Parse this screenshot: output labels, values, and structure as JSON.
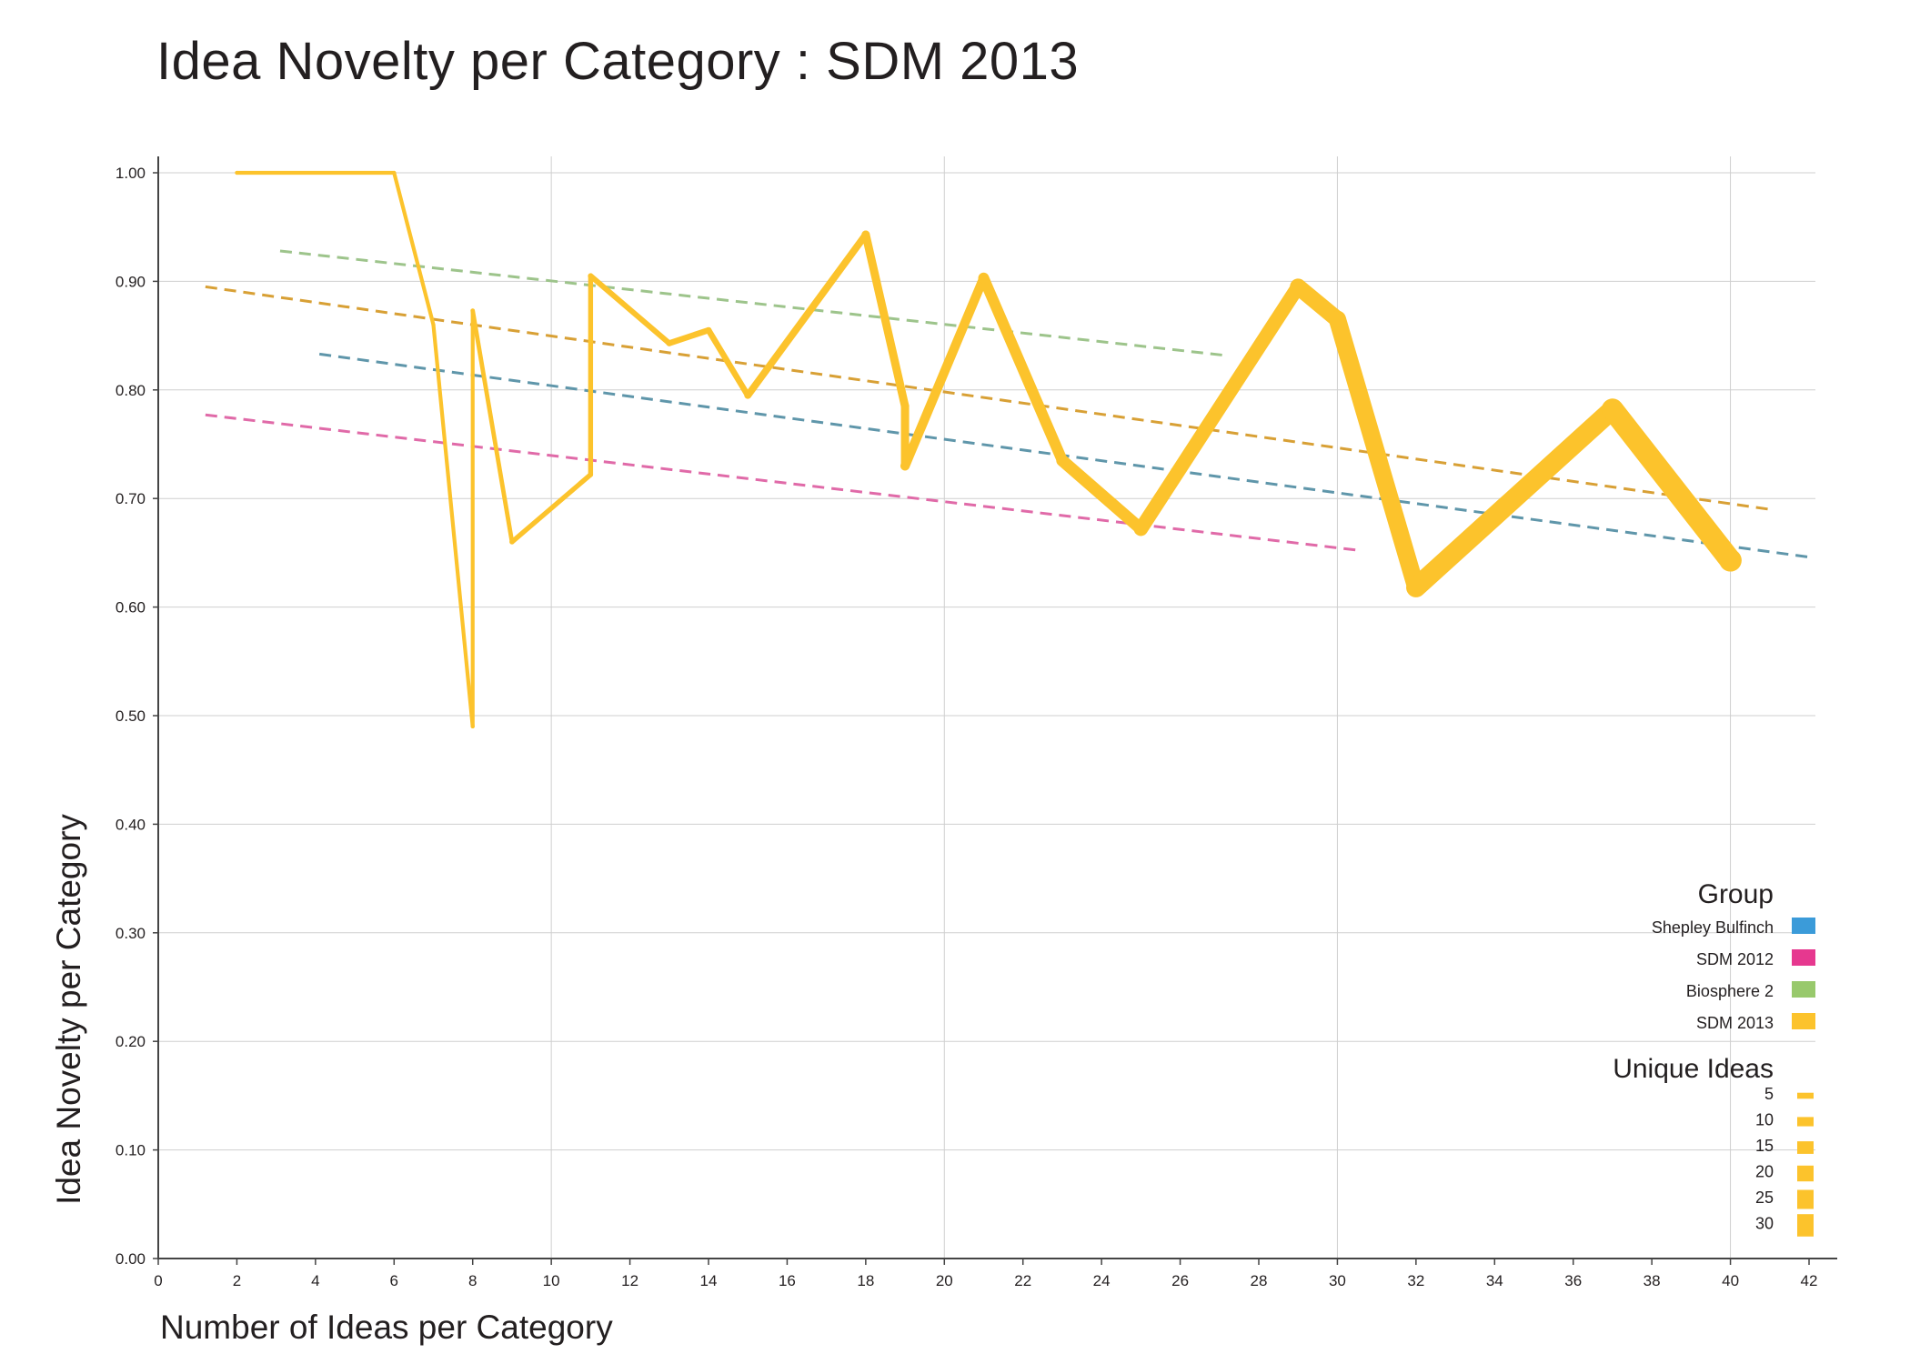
{
  "chart_data": {
    "type": "line",
    "title": "Idea Novelty per Category : SDM 2013",
    "xlabel": "Number of Ideas per Category",
    "ylabel": "Idea Novelty per Category",
    "xlim": [
      0,
      42
    ],
    "ylim": [
      0,
      1.0
    ],
    "x_ticks": [
      "0",
      "2",
      "4",
      "6",
      "8",
      "10",
      "12",
      "14",
      "16",
      "18",
      "20",
      "22",
      "24",
      "26",
      "28",
      "30",
      "32",
      "34",
      "36",
      "38",
      "40",
      "42"
    ],
    "y_ticks": [
      "0.00",
      "0.10",
      "0.20",
      "0.30",
      "0.40",
      "0.50",
      "0.60",
      "0.70",
      "0.80",
      "0.90",
      "1.00"
    ],
    "x_gridlines": [
      10,
      20,
      30,
      40
    ],
    "grid": true,
    "series": [
      {
        "name": "SDM 2013",
        "color": "#fcc32c",
        "points": [
          {
            "x": 2,
            "y": 1.0,
            "unique": 1
          },
          {
            "x": 6,
            "y": 1.0,
            "unique": 1
          },
          {
            "x": 7,
            "y": 0.86,
            "unique": 1
          },
          {
            "x": 8,
            "y": 0.49,
            "unique": 1
          },
          {
            "x": 8,
            "y": 0.873,
            "unique": 1
          },
          {
            "x": 9,
            "y": 0.66,
            "unique": 2
          },
          {
            "x": 11,
            "y": 0.722,
            "unique": 2
          },
          {
            "x": 11,
            "y": 0.905,
            "unique": 2
          },
          {
            "x": 13,
            "y": 0.843,
            "unique": 3
          },
          {
            "x": 14,
            "y": 0.855,
            "unique": 3
          },
          {
            "x": 15,
            "y": 0.795,
            "unique": 3
          },
          {
            "x": 18,
            "y": 0.943,
            "unique": 5
          },
          {
            "x": 19,
            "y": 0.785,
            "unique": 5
          },
          {
            "x": 19,
            "y": 0.73,
            "unique": 5
          },
          {
            "x": 21,
            "y": 0.903,
            "unique": 7
          },
          {
            "x": 23,
            "y": 0.735,
            "unique": 8
          },
          {
            "x": 25,
            "y": 0.672,
            "unique": 9
          },
          {
            "x": 29,
            "y": 0.895,
            "unique": 12
          },
          {
            "x": 30,
            "y": 0.865,
            "unique": 13
          },
          {
            "x": 32,
            "y": 0.618,
            "unique": 14
          },
          {
            "x": 37,
            "y": 0.782,
            "unique": 17
          },
          {
            "x": 40,
            "y": 0.643,
            "unique": 18
          }
        ]
      }
    ],
    "trendlines": [
      {
        "group": "Shepley Bulfinch",
        "color": "#5f96aa",
        "x": [
          4.1,
          42.0
        ],
        "y": [
          0.833,
          0.646
        ]
      },
      {
        "group": "SDM 2012",
        "color": "#e06aa8",
        "x": [
          1.2,
          30.6
        ],
        "y": [
          0.777,
          0.652
        ]
      },
      {
        "group": "Biosphere 2",
        "color": "#9dc48b",
        "x": [
          3.1,
          27.1
        ],
        "y": [
          0.928,
          0.832
        ]
      },
      {
        "group": "SDM 2013",
        "color": "#d8a035",
        "x": [
          1.2,
          41.0
        ],
        "y": [
          0.895,
          0.69
        ]
      }
    ],
    "legend": {
      "placement": "bottom-right",
      "group_title": "Group",
      "groups": [
        {
          "label": "Shepley Bulfinch",
          "color": "#3b9bd9"
        },
        {
          "label": "SDM 2012",
          "color": "#e6388f"
        },
        {
          "label": "Biosphere 2",
          "color": "#98c96c"
        },
        {
          "label": "SDM 2013",
          "color": "#fcc32c"
        }
      ],
      "size_title": "Unique Ideas",
      "sizes": [
        {
          "label": "5",
          "value": 5
        },
        {
          "label": "10",
          "value": 10
        },
        {
          "label": "15",
          "value": 15
        },
        {
          "label": "20",
          "value": 20
        },
        {
          "label": "25",
          "value": 25
        },
        {
          "label": "30",
          "value": 30
        }
      ]
    }
  }
}
